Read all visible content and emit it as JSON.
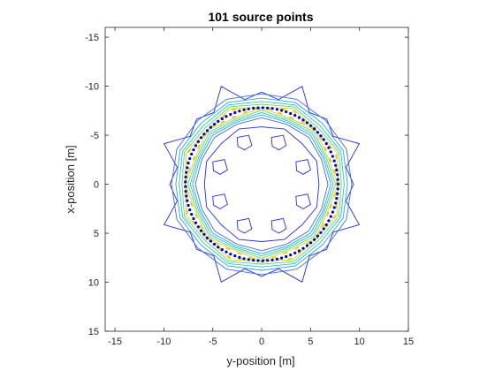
{
  "chart_data": {
    "type": "contour",
    "title": "101 source points",
    "xlabel": "y-position [m]",
    "ylabel": "x-position [m]",
    "xlim": [
      -16,
      15
    ],
    "ylim": [
      -16,
      15
    ],
    "y_axis_reversed": true,
    "xticks": [
      -15,
      -10,
      -5,
      0,
      5,
      10,
      15
    ],
    "yticks": [
      -15,
      -10,
      -5,
      0,
      5,
      10,
      15
    ],
    "grid": false,
    "source_points": {
      "count": 101,
      "shape": "circle",
      "center": [
        0,
        0
      ],
      "radius": 7.8,
      "color": "#0000c8"
    },
    "contour_levels": [
      {
        "color": "#2b2bd6",
        "shape": "octagon-star",
        "radius": 10.6,
        "spike": 1.4,
        "inner_radius": 6.0
      },
      {
        "color": "#3f6fe0",
        "shape": "ring",
        "r_out": 9.3,
        "r_in": 6.7
      },
      {
        "color": "#2aa7e0",
        "shape": "ring",
        "r_out": 8.9,
        "r_in": 6.95
      },
      {
        "color": "#22c7c0",
        "shape": "ring",
        "r_out": 8.6,
        "r_in": 7.15
      },
      {
        "color": "#5fd27a",
        "shape": "ring",
        "r_out": 8.35,
        "r_in": 7.35
      },
      {
        "color": "#c8d83a",
        "shape": "ring",
        "r_out": 8.1,
        "r_in": 7.55
      },
      {
        "color": "#f2c21e",
        "shape": "ring-segments",
        "r_out": 7.95,
        "r_in": 7.7
      }
    ],
    "inner_islands": {
      "count": 8,
      "color": "#2b2bd6",
      "radius_from_center": 4.6
    }
  }
}
